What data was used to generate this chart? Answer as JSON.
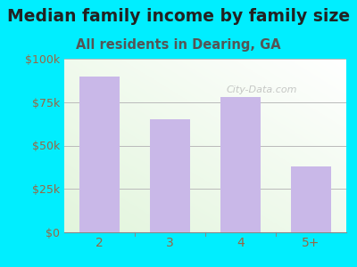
{
  "title": "Median family income by family size",
  "subtitle": "All residents in Dearing, GA",
  "categories": [
    "2",
    "3",
    "4",
    "5+"
  ],
  "values": [
    90000,
    65000,
    78000,
    38000
  ],
  "bar_color": "#c9b8e8",
  "background_outer": "#00eeff",
  "title_color": "#222222",
  "subtitle_color": "#555555",
  "tick_color": "#996644",
  "grid_color": "#bbbbbb",
  "ylim": [
    0,
    100000
  ],
  "yticks": [
    0,
    25000,
    50000,
    75000,
    100000
  ],
  "ytick_labels": [
    "$0",
    "$25k",
    "$50k",
    "$75k",
    "$100k"
  ],
  "watermark": "City-Data.com",
  "title_fontsize": 13.5,
  "subtitle_fontsize": 10.5
}
